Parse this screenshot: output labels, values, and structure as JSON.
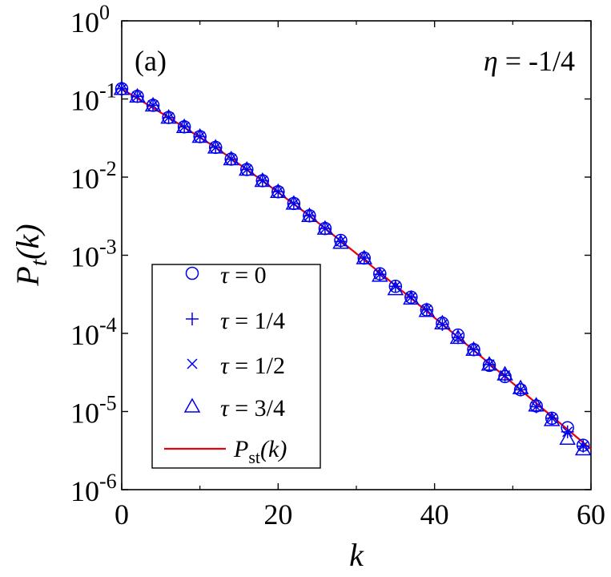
{
  "chart_data": {
    "type": "scatter",
    "panel_label": "(a)",
    "parameter_label": {
      "symbol": "η",
      "text": " = -1/4"
    },
    "xlabel": "k",
    "ylabel": {
      "main": "P",
      "sub": "t",
      "arg": "(k)"
    },
    "xlim": [
      0,
      60
    ],
    "ylim": [
      1e-06,
      1
    ],
    "yscale": "log",
    "grid": false,
    "legend_position": "bottom-left",
    "x_ticks": [
      "0",
      "20",
      "40",
      "60"
    ],
    "y_ticks": [
      {
        "base": "10",
        "exp": "0",
        "value": 1
      },
      {
        "base": "10",
        "exp": "-1",
        "value": 0.1
      },
      {
        "base": "10",
        "exp": "-2",
        "value": 0.01
      },
      {
        "base": "10",
        "exp": "-3",
        "value": 0.001
      },
      {
        "base": "10",
        "exp": "-4",
        "value": 0.0001
      },
      {
        "base": "10",
        "exp": "-5",
        "value": 1e-05
      },
      {
        "base": "10",
        "exp": "-6",
        "value": 1e-06
      }
    ],
    "colors": {
      "markers": "#0000ee",
      "line": "#e8000b",
      "axes": "#000000"
    },
    "series": [
      {
        "name": "τ = 0",
        "legend_symbol": "τ",
        "legend_text": " = 0",
        "marker": "circle",
        "x": [
          0,
          2,
          4,
          6,
          8,
          10,
          12,
          14,
          16,
          18,
          20,
          22,
          24,
          26,
          28,
          31,
          33,
          35,
          37,
          39,
          41,
          43,
          45,
          47,
          49,
          51,
          53,
          55,
          57,
          59
        ],
        "y": [
          0.135,
          0.108,
          0.083,
          0.058,
          0.044,
          0.033,
          0.024,
          0.017,
          0.0125,
          0.009,
          0.0065,
          0.0046,
          0.0032,
          0.0022,
          0.00155,
          0.00092,
          0.00058,
          0.0004,
          0.00029,
          0.0002,
          0.000135,
          9.5e-05,
          6.2e-05,
          3.9e-05,
          2.8e-05,
          1.9e-05,
          1.18e-05,
          8.2e-06,
          6.2e-06,
          3.7e-06
        ]
      },
      {
        "name": "τ = 1/4",
        "legend_symbol": "τ",
        "legend_text": " = 1/4",
        "marker": "plus",
        "x": [
          0,
          2,
          4,
          6,
          8,
          10,
          12,
          14,
          16,
          18,
          20,
          22,
          24,
          26,
          28,
          31,
          33,
          35,
          37,
          39,
          41,
          43,
          45,
          47,
          49,
          51,
          53,
          55,
          57,
          59
        ],
        "y": [
          0.135,
          0.108,
          0.083,
          0.058,
          0.044,
          0.033,
          0.024,
          0.017,
          0.0125,
          0.009,
          0.0065,
          0.0046,
          0.0032,
          0.0022,
          0.0015,
          0.00092,
          0.00057,
          0.0004,
          0.00029,
          0.0002,
          0.00013,
          8.8e-05,
          6.2e-05,
          4e-05,
          2.9e-05,
          1.9e-05,
          1.15e-05,
          8.2e-06,
          5.5e-06,
          3.6e-06
        ]
      },
      {
        "name": "τ = 1/2",
        "legend_symbol": "τ",
        "legend_text": " = 1/2",
        "marker": "cross",
        "x": [
          0,
          2,
          4,
          6,
          8,
          10,
          12,
          14,
          16,
          18,
          20,
          22,
          24,
          26,
          28,
          31,
          33,
          35,
          37,
          39,
          41,
          43,
          45,
          47,
          49,
          51,
          53,
          55,
          57,
          59
        ],
        "y": [
          0.135,
          0.108,
          0.083,
          0.058,
          0.044,
          0.033,
          0.024,
          0.017,
          0.0125,
          0.009,
          0.0065,
          0.0046,
          0.0032,
          0.0022,
          0.0015,
          0.00092,
          0.00057,
          0.0004,
          0.00029,
          0.0002,
          0.00013,
          8.8e-05,
          6.2e-05,
          4e-05,
          2.9e-05,
          1.9e-05,
          1.15e-05,
          8.2e-06,
          5.5e-06,
          3.6e-06
        ]
      },
      {
        "name": "τ = 3/4",
        "legend_symbol": "τ",
        "legend_text": " = 3/4",
        "marker": "triangle",
        "x": [
          0,
          2,
          4,
          6,
          8,
          10,
          12,
          14,
          16,
          18,
          20,
          22,
          24,
          26,
          28,
          31,
          33,
          35,
          37,
          39,
          41,
          43,
          45,
          47,
          49,
          51,
          53,
          55,
          57,
          59
        ],
        "y": [
          0.135,
          0.108,
          0.083,
          0.058,
          0.044,
          0.033,
          0.024,
          0.017,
          0.0125,
          0.009,
          0.0065,
          0.0046,
          0.0032,
          0.0022,
          0.00145,
          0.00092,
          0.00055,
          0.00037,
          0.00028,
          0.000195,
          0.000135,
          8.8e-05,
          6.2e-05,
          4e-05,
          3e-05,
          2e-05,
          1.2e-05,
          7.8e-06,
          4.5e-06,
          3.3e-06
        ]
      }
    ],
    "line": {
      "name": "P_st(k)",
      "legend_main": "P",
      "legend_sub": "st",
      "legend_arg": "(k)",
      "x": [
        0,
        6,
        12,
        18,
        24,
        30,
        36,
        42,
        48,
        54,
        60
      ],
      "y": [
        0.135,
        0.058,
        0.024,
        0.009,
        0.0032,
        0.00105,
        0.00034,
        0.000108,
        3.4e-05,
        1.05e-05,
        3.3e-06
      ]
    }
  }
}
